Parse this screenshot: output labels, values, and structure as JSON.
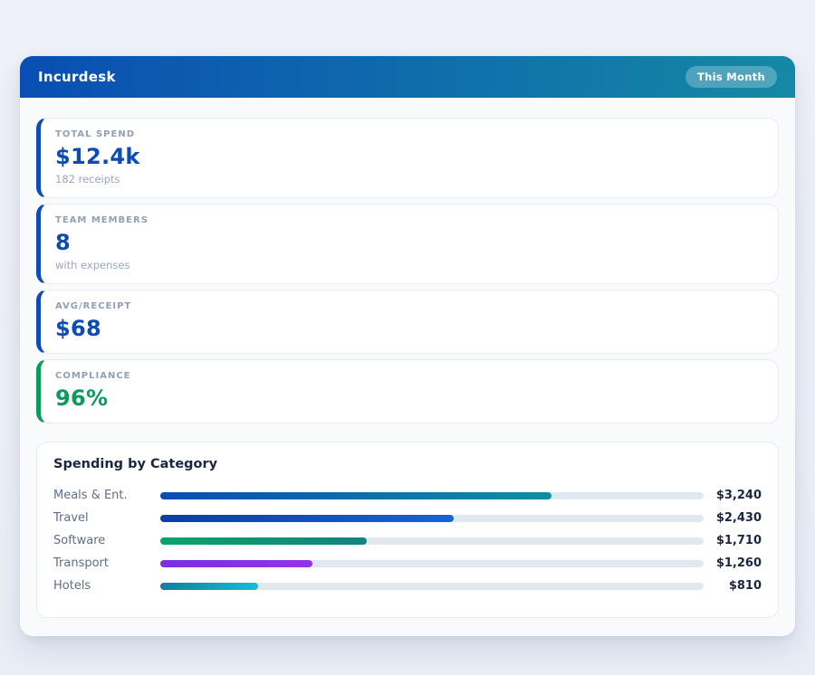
{
  "header": {
    "title": "Incurdesk",
    "badge": "This Month",
    "gradient_from": "#0a4eb3",
    "gradient_to": "#1489a4"
  },
  "stats": [
    {
      "label": "TOTAL SPEND",
      "value": "$12.4k",
      "sub": "182 receipts",
      "accent": "#0c4cb3"
    },
    {
      "label": "TEAM MEMBERS",
      "value": "8",
      "sub": "with expenses",
      "accent": "#0c4cb3"
    },
    {
      "label": "AVG/RECEIPT",
      "value": "$68",
      "sub": "",
      "accent": "#0c4cb3"
    },
    {
      "label": "COMPLIANCE",
      "value": "96%",
      "sub": "",
      "accent": "#0d9b5c"
    }
  ],
  "chart_data": {
    "type": "bar",
    "orientation": "horizontal",
    "title": "Spending by Category",
    "categories": [
      "Meals & Ent.",
      "Travel",
      "Software",
      "Transport",
      "Hotels"
    ],
    "values": [
      3240,
      2430,
      1710,
      1260,
      810
    ],
    "value_labels": [
      "$3,240",
      "$2,430",
      "$1,710",
      "$1,260",
      "$810"
    ],
    "axis_max": 4500,
    "track_color": "#e2e8f0",
    "bar_colors": [
      {
        "from": "#0c4cb3",
        "to": "#0e8fa0"
      },
      {
        "from": "#0a3fa3",
        "to": "#1565d8"
      },
      {
        "from": "#0aa36b",
        "to": "#13837f"
      },
      {
        "from": "#7a2fe0",
        "to": "#9333ea"
      },
      {
        "from": "#0f7f9e",
        "to": "#17bcd9"
      }
    ]
  }
}
